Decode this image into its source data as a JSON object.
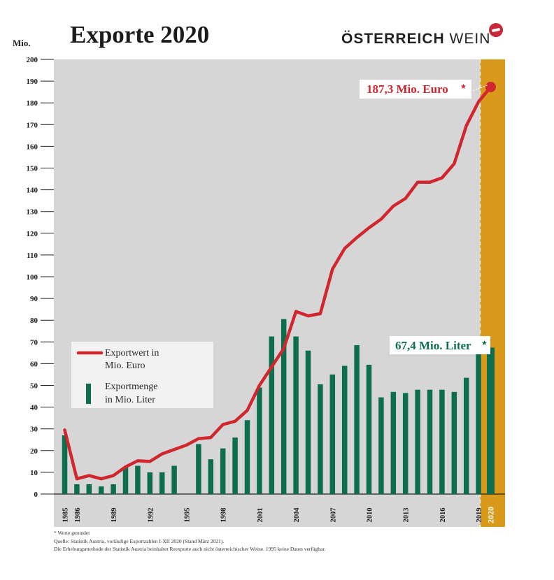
{
  "header": {
    "title": "Exporte 2020",
    "unit_label": "Mio.",
    "brand_part1": "ÖSTERREICH",
    "brand_part2": "WEIN",
    "logo_icon": "red-circle-logo-icon"
  },
  "chart_data": {
    "type": "bar",
    "ylim": [
      0,
      200
    ],
    "yticks": [
      0,
      10,
      20,
      30,
      40,
      50,
      60,
      70,
      80,
      90,
      100,
      110,
      120,
      130,
      140,
      150,
      160,
      170,
      180,
      190,
      200
    ],
    "x": [
      1985,
      1986,
      1987,
      1988,
      1989,
      1990,
      1991,
      1992,
      1993,
      1994,
      1995,
      1996,
      1997,
      1998,
      1999,
      2000,
      2001,
      2002,
      2003,
      2004,
      2005,
      2006,
      2007,
      2008,
      2009,
      2010,
      2011,
      2012,
      2013,
      2014,
      2015,
      2016,
      2017,
      2018,
      2019,
      2020
    ],
    "xtick_labels": [
      "1985",
      "1986",
      "1989",
      "1992",
      "1995",
      "1998",
      "2001",
      "2004",
      "2007",
      "2010",
      "2013",
      "2016",
      "2019",
      "2020"
    ],
    "grid": false,
    "legend_position": "left",
    "series": [
      {
        "name": "Exportwert in Mio. Euro",
        "type": "line",
        "color": "#d0272f",
        "values": [
          29.5,
          7,
          8.5,
          7,
          8.5,
          12.5,
          15.3,
          15,
          18.5,
          20.5,
          22.5,
          25.5,
          26,
          32,
          33.5,
          38.5,
          50,
          58.5,
          67,
          84,
          82,
          83,
          103.5,
          113,
          118,
          122.5,
          126.5,
          132.5,
          136,
          143.5,
          143.5,
          145.5,
          152,
          169.5,
          180.5,
          187.3
        ]
      },
      {
        "name": "Exportmenge in Mio. Liter",
        "type": "bar",
        "color": "#0d6e4f",
        "values": [
          27,
          4.5,
          4.5,
          3.5,
          4.5,
          12.5,
          13,
          10,
          10,
          13,
          null,
          23,
          16,
          21,
          26,
          34,
          49,
          72.5,
          80.5,
          72.5,
          66,
          50.5,
          55,
          59,
          68.5,
          59.5,
          44.5,
          47,
          46.5,
          48,
          48,
          48,
          47,
          53.5,
          64.5,
          67.4
        ]
      }
    ],
    "annotations": [
      {
        "text": "187,3 Mio. Euro",
        "star": "★",
        "color": "#d0272f"
      },
      {
        "text": "67,4 Mio. Liter",
        "star": "★",
        "color": "#0d6e4f"
      }
    ],
    "legend": {
      "line_label_1": "Exportwert in",
      "line_label_2": "Mio. Euro",
      "bar_label_1": "Exportmenge",
      "bar_label_2": "in Mio. Liter"
    },
    "colors": {
      "plot_background": "#d6d6d6",
      "highlight_column": "#d99a1b",
      "xaxis_band": "#d6d6d6"
    }
  },
  "footnotes": {
    "line1": "* Werte gerundet",
    "line2": "Quelle: Statistik Austria, vorläufige Exportzahlen I-XII 2020 (Stand März 2021).",
    "line3": "Die Erhebungsmethode der Statistik Austria beinhaltet Reexporte auch nicht österreichischer Weine. 1995 keine Daten verfügbar."
  }
}
